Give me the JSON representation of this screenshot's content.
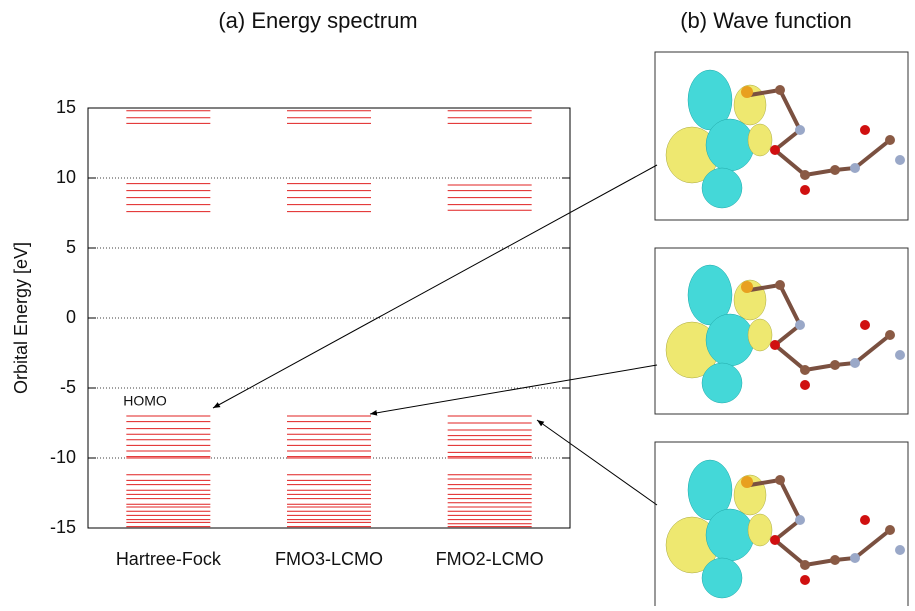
{
  "chart_data": {
    "type": "levels",
    "title": "(a) Energy spectrum",
    "y_label": "Orbital Energy [eV]",
    "categories": [
      "Hartree-Fock",
      "FMO3-LCMO",
      "FMO2-LCMO"
    ],
    "values": [
      [
        14.8,
        14.3,
        13.9,
        9.6,
        9.1,
        8.6,
        8.1,
        7.6,
        -7.0,
        -7.4,
        -7.9,
        -8.3,
        -8.7,
        -9.1,
        -9.5,
        -9.9,
        -10.0,
        -11.2,
        -11.6,
        -11.9,
        -12.3,
        -12.6,
        -12.9,
        -13.3,
        -13.5,
        -13.8,
        -14.1,
        -14.4,
        -14.6,
        -14.9
      ],
      [
        14.8,
        14.3,
        13.9,
        9.6,
        9.1,
        8.6,
        8.1,
        7.6,
        -7.0,
        -7.4,
        -7.9,
        -8.3,
        -8.7,
        -9.1,
        -9.5,
        -9.9,
        -10.0,
        -11.2,
        -11.6,
        -11.9,
        -12.3,
        -12.6,
        -12.9,
        -13.3,
        -13.5,
        -13.8,
        -14.1,
        -14.4,
        -14.6,
        -14.9
      ],
      [
        14.8,
        14.3,
        13.9,
        9.5,
        9.1,
        8.6,
        8.1,
        7.7,
        -7.0,
        -7.5,
        -8.0,
        -8.4,
        -8.7,
        -9.1,
        -9.6,
        -9.9,
        -10.0,
        -11.2,
        -11.5,
        -11.9,
        -12.2,
        -12.6,
        -12.9,
        -13.2,
        -13.5,
        -13.8,
        -14.1,
        -14.4,
        -14.7,
        -14.9
      ]
    ],
    "color": "#e02020",
    "annotation": "HOMO",
    "ylim": [
      -15,
      15
    ],
    "yticks": [
      -15,
      -10,
      -5,
      0,
      5,
      10,
      15
    ],
    "grid": true
  },
  "panel_b": {
    "title": "(b) Wave function"
  }
}
